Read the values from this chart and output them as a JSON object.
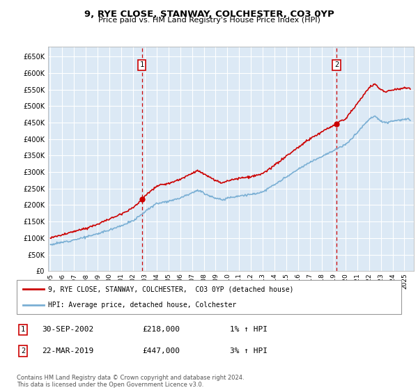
{
  "title": "9, RYE CLOSE, STANWAY, COLCHESTER, CO3 0YP",
  "subtitle": "Price paid vs. HM Land Registry's House Price Index (HPI)",
  "bg_color": "#dce9f5",
  "fig_bg_color": "#ffffff",
  "ylim": [
    0,
    680000
  ],
  "yticks": [
    0,
    50000,
    100000,
    150000,
    200000,
    250000,
    300000,
    350000,
    400000,
    450000,
    500000,
    550000,
    600000,
    650000
  ],
  "ytick_labels": [
    "£0",
    "£50K",
    "£100K",
    "£150K",
    "£200K",
    "£250K",
    "£300K",
    "£350K",
    "£400K",
    "£450K",
    "£500K",
    "£550K",
    "£600K",
    "£650K"
  ],
  "sale1_x": 2002.75,
  "sale1_y": 218000,
  "sale2_x": 2019.25,
  "sale2_y": 447000,
  "sale1_label": "1",
  "sale2_label": "2",
  "line1_color": "#cc0000",
  "line2_color": "#7aafd4",
  "sale_dot_color": "#cc0000",
  "vline_color": "#cc0000",
  "legend_line1": "9, RYE CLOSE, STANWAY, COLCHESTER,  CO3 0YP (detached house)",
  "legend_line2": "HPI: Average price, detached house, Colchester",
  "table_data": [
    {
      "num": "1",
      "date": "30-SEP-2002",
      "price": "£218,000",
      "hpi": "1% ↑ HPI"
    },
    {
      "num": "2",
      "date": "22-MAR-2019",
      "price": "£447,000",
      "hpi": "3% ↑ HPI"
    }
  ],
  "footer": "Contains HM Land Registry data © Crown copyright and database right 2024.\nThis data is licensed under the Open Government Licence v3.0.",
  "xtick_years": [
    1995,
    1996,
    1997,
    1998,
    1999,
    2000,
    2001,
    2002,
    2003,
    2004,
    2005,
    2006,
    2007,
    2008,
    2009,
    2010,
    2011,
    2012,
    2013,
    2014,
    2015,
    2016,
    2017,
    2018,
    2019,
    2020,
    2021,
    2022,
    2023,
    2024,
    2025
  ]
}
